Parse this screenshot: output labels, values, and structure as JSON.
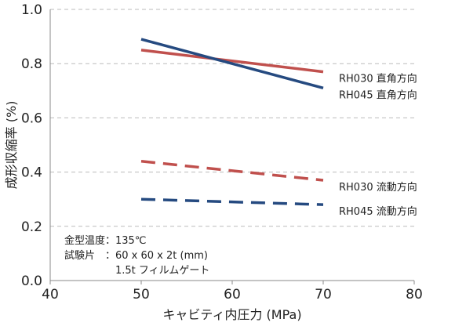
{
  "chart_data": {
    "type": "line",
    "xlabel": "キャビティ内圧力 (MPa)",
    "ylabel": "成形収縮率 (%)",
    "xlim": [
      40,
      80
    ],
    "ylim": [
      0.0,
      1.0
    ],
    "x_ticks": [
      "40",
      "50",
      "60",
      "70",
      "80"
    ],
    "y_ticks": [
      "0.0",
      "0.2",
      "0.4",
      "0.6",
      "0.8",
      "1.0"
    ],
    "grid": "horizontal dashed",
    "legend": "labels at right end of each line",
    "series": [
      {
        "name": "RH030 直角方向",
        "x": [
          50,
          70
        ],
        "y": [
          0.85,
          0.77
        ],
        "color": "#c0504d",
        "style": "solid"
      },
      {
        "name": "RH045 直角方向",
        "x": [
          50,
          70
        ],
        "y": [
          0.89,
          0.71
        ],
        "color": "#254a80",
        "style": "solid"
      },
      {
        "name": "RH030 流動方向",
        "x": [
          50,
          70
        ],
        "y": [
          0.44,
          0.37
        ],
        "color": "#c0504d",
        "style": "dashed"
      },
      {
        "name": "RH045 流動方向",
        "x": [
          50,
          70
        ],
        "y": [
          0.3,
          0.28
        ],
        "color": "#254a80",
        "style": "dashed"
      }
    ],
    "annotations": [
      "金型温度：135℃",
      "試験片　：60 x 60 x 2t (mm)",
      "　　　　　1.5t フィルムゲート"
    ]
  }
}
